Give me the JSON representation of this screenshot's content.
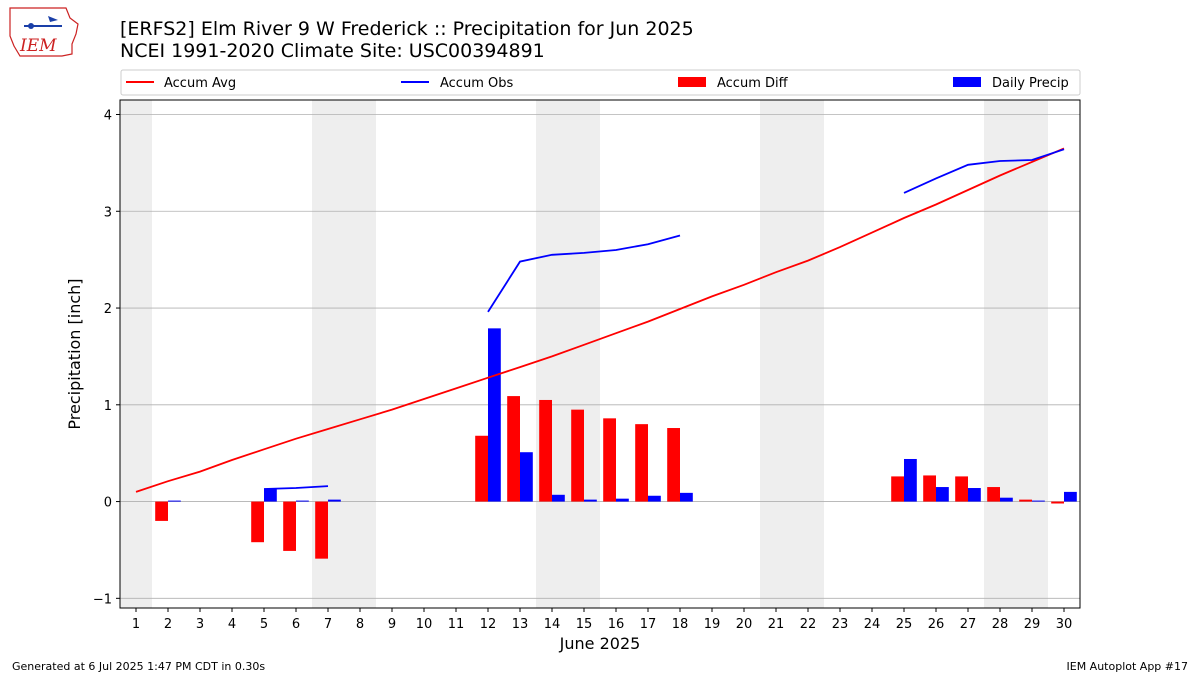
{
  "header": {
    "title_line1": "[ERFS2] Elm River 9 W Frederick :: Precipitation for Jun 2025",
    "title_line2": "NCEI 1991-2020 Climate Site: USC00394891"
  },
  "logo": {
    "text": "IEM"
  },
  "footer": {
    "left": "Generated at 6 Jul 2025 1:47 PM CDT in 0.30s",
    "right": "IEM Autoplot App #17"
  },
  "colors": {
    "avg": "#ff0000",
    "obs": "#0000ff",
    "diff": "#ff0000",
    "daily": "#0000ff",
    "weekend_band": "#eeeeee",
    "grid": "#b0b0b0"
  },
  "chart_data": {
    "type": "bar",
    "xlabel": "June 2025",
    "ylabel": "Precipitation [inch]",
    "xlim": [
      0.5,
      30.5
    ],
    "ylim": [
      -1.1,
      4.15
    ],
    "yticks": [
      -1,
      0,
      1,
      2,
      3,
      4
    ],
    "x": [
      1,
      2,
      3,
      4,
      5,
      6,
      7,
      8,
      9,
      10,
      11,
      12,
      13,
      14,
      15,
      16,
      17,
      18,
      19,
      20,
      21,
      22,
      23,
      24,
      25,
      26,
      27,
      28,
      29,
      30
    ],
    "weekend_bands": [
      [
        0.5,
        1.5
      ],
      [
        6.5,
        8.5
      ],
      [
        13.5,
        15.5
      ],
      [
        20.5,
        22.5
      ],
      [
        27.5,
        29.5
      ]
    ],
    "grid": true,
    "legend_position": "top",
    "legend": {
      "accum_avg": "Accum Avg",
      "accum_obs": "Accum Obs",
      "accum_diff": "Accum Diff",
      "daily_precip": "Daily Precip"
    },
    "series": [
      {
        "name": "Accum Avg",
        "kind": "line",
        "values": [
          0.1,
          0.21,
          0.31,
          0.43,
          0.54,
          0.65,
          0.75,
          0.85,
          0.95,
          1.06,
          1.17,
          1.28,
          1.39,
          1.5,
          1.62,
          1.74,
          1.86,
          1.99,
          2.12,
          2.24,
          2.37,
          2.49,
          2.63,
          2.78,
          2.93,
          3.07,
          3.22,
          3.37,
          3.51,
          3.65
        ]
      },
      {
        "name": "Accum Obs",
        "kind": "line",
        "values": [
          null,
          null,
          null,
          null,
          0.13,
          0.14,
          0.16,
          null,
          null,
          null,
          null,
          1.96,
          2.48,
          2.55,
          2.57,
          2.6,
          2.66,
          2.75,
          null,
          null,
          null,
          null,
          null,
          null,
          3.19,
          3.34,
          3.48,
          3.52,
          3.53,
          3.64
        ]
      },
      {
        "name": "Accum Diff",
        "kind": "bar",
        "values": [
          0,
          -0.2,
          0,
          0,
          -0.42,
          -0.51,
          -0.59,
          0,
          0,
          0,
          0,
          0.68,
          1.09,
          1.05,
          0.95,
          0.86,
          0.8,
          0.76,
          0,
          0,
          0,
          0,
          0,
          0,
          0.26,
          0.27,
          0.26,
          0.15,
          0.02,
          -0.02
        ]
      },
      {
        "name": "Daily Precip",
        "kind": "bar",
        "values": [
          0,
          0.01,
          0,
          0,
          0.13,
          0.01,
          0.02,
          0,
          0,
          0,
          0,
          1.79,
          0.51,
          0.07,
          0.02,
          0.03,
          0.06,
          0.09,
          0,
          0,
          0,
          0,
          0,
          0,
          0.44,
          0.15,
          0.14,
          0.04,
          0.01,
          0.1
        ]
      }
    ]
  }
}
